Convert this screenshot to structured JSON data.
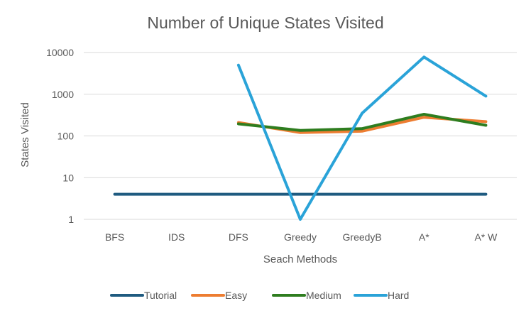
{
  "chart_data": {
    "type": "line",
    "title": "Number of Unique States Visited",
    "xlabel": "Seach Methods",
    "ylabel": "States Visited",
    "yscale": "log",
    "ylim": [
      1,
      10000
    ],
    "yticks": [
      1,
      10,
      100,
      1000,
      10000
    ],
    "ytick_labels": [
      "1",
      "10",
      "100",
      "1000",
      "10000"
    ],
    "grid": "horizontal",
    "legend_position": "bottom",
    "categories": [
      "BFS",
      "IDS",
      "DFS",
      "Greedy",
      "GreedyB",
      "A*",
      "A* W"
    ],
    "series": [
      {
        "name": "Tutorial",
        "color": "#1f5b80",
        "values": [
          4,
          4,
          4,
          4,
          4,
          4,
          4
        ]
      },
      {
        "name": "Easy",
        "color": "#ed7d31",
        "values": [
          null,
          null,
          210,
          120,
          130,
          280,
          220
        ]
      },
      {
        "name": "Medium",
        "color": "#2e7d1f",
        "values": [
          null,
          null,
          195,
          135,
          150,
          330,
          180
        ]
      },
      {
        "name": "Hard",
        "color": "#2aa3d8",
        "values": [
          null,
          null,
          5000,
          1,
          350,
          7800,
          900
        ]
      }
    ]
  }
}
